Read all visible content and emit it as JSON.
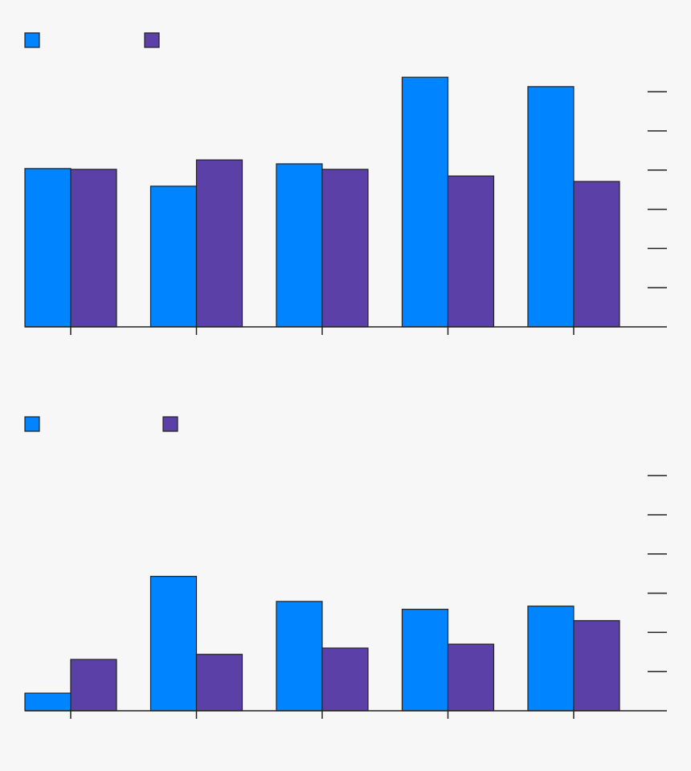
{
  "chart_data": [
    {
      "type": "bar",
      "categories": [
        null,
        null,
        null,
        null,
        null
      ],
      "series": [
        {
          "color": "#0084ff",
          "values": [
            4.04,
            3.59,
            4.16,
            6.37,
            6.13
          ]
        },
        {
          "color": "#5b40a8",
          "values": [
            4.02,
            4.26,
            4.02,
            3.85,
            3.71
          ]
        }
      ],
      "ylim": [
        0,
        6.5
      ],
      "yticks": [
        1,
        2,
        3,
        4,
        5,
        6
      ]
    },
    {
      "type": "bar",
      "categories": [
        null,
        null,
        null,
        null,
        null
      ],
      "series": [
        {
          "color": "#0084ff",
          "values": [
            0.45,
            3.43,
            2.79,
            2.59,
            2.67
          ]
        },
        {
          "color": "#5b40a8",
          "values": [
            1.31,
            1.44,
            1.6,
            1.7,
            2.3
          ]
        }
      ],
      "ylim": [
        0,
        6.5
      ],
      "yticks": [
        1,
        2,
        3,
        4,
        5,
        6
      ]
    }
  ]
}
